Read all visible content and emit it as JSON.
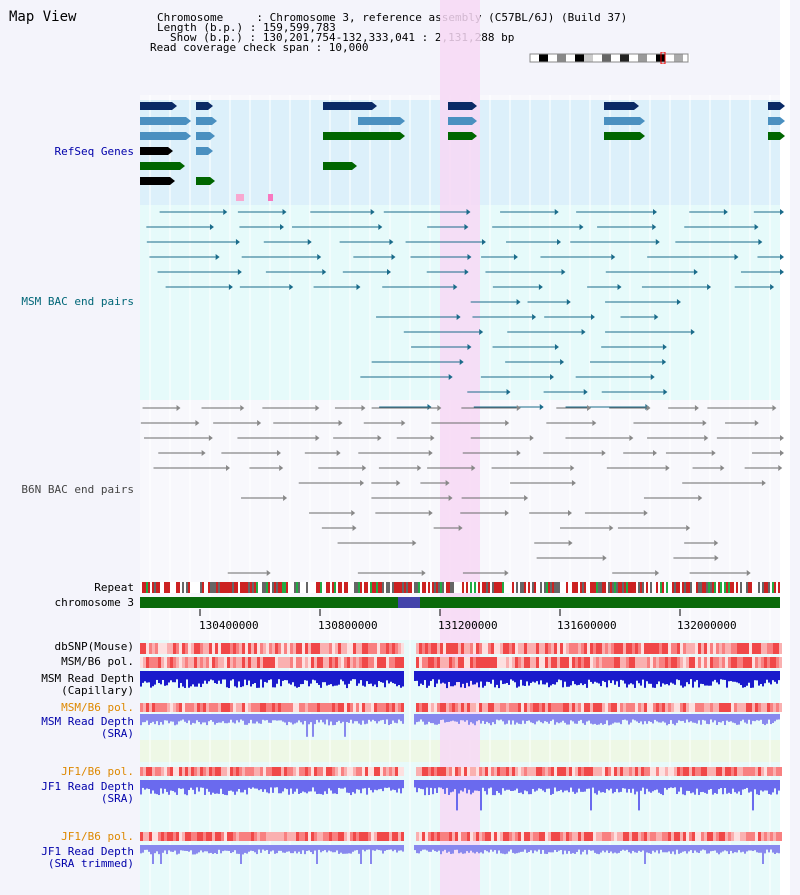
{
  "app": {
    "title": "Map View"
  },
  "header": {
    "chrom_line": "Chromosome     : Chromosome 3, reference assembly (C57BL/6J) (Build 37)",
    "length_line": "Length (b.p.) : 159,599,783",
    "show_line": "Show (b.p.) : 130,201,754-132,333,041 : 2,131,288 bp",
    "span_line": "Read coverage check span : 10,000"
  },
  "tracks": {
    "refseq": "RefSeq Genes",
    "msm_bac": "MSM BAC end pairs",
    "b6n_bac": "B6N BAC end pairs",
    "repeat": "Repeat",
    "chromosome": "chromosome 3",
    "dbsnp": "dbSNP(Mouse)",
    "msm_pol": "MSM/B6 pol.",
    "msm_depth_cap_1": "MSM Read Depth",
    "msm_depth_cap_2": "(Capillary)",
    "msm_pol_sra": "MSM/B6 pol.",
    "msm_depth_sra_1": "MSM Read Depth",
    "msm_depth_sra_2": "(SRA)",
    "jf1_pol": "JF1/B6 pol.",
    "jf1_depth_1": "JF1 Read Depth",
    "jf1_depth_2": "(SRA)",
    "jf1_pol_trim": "JF1/B6 pol.",
    "jf1_trim_1": "JF1 Read Depth",
    "jf1_trim_2": "(SRA trimmed)"
  },
  "axis": {
    "ticks": [
      "130400000",
      "130800000",
      "131200000",
      "131600000",
      "132000000"
    ]
  },
  "colors": {
    "highlight": "#f7d8f4",
    "refseq_band": "#dcf0fa",
    "gene_dark": "#0a2a66",
    "gene_mid": "#4a90c0",
    "gene_green": "#006600",
    "bac_msm": "#1a6b8a",
    "bac_b6n": "#6a6a6a",
    "chrom_bar": "#0a6a0a",
    "depth_blue": "#1a1acc",
    "depth_light": "#8888ee",
    "pol_red": "#e83030",
    "label_blue": "#0000aa",
    "label_teal": "#006677",
    "label_orange": "#dd8800"
  }
}
